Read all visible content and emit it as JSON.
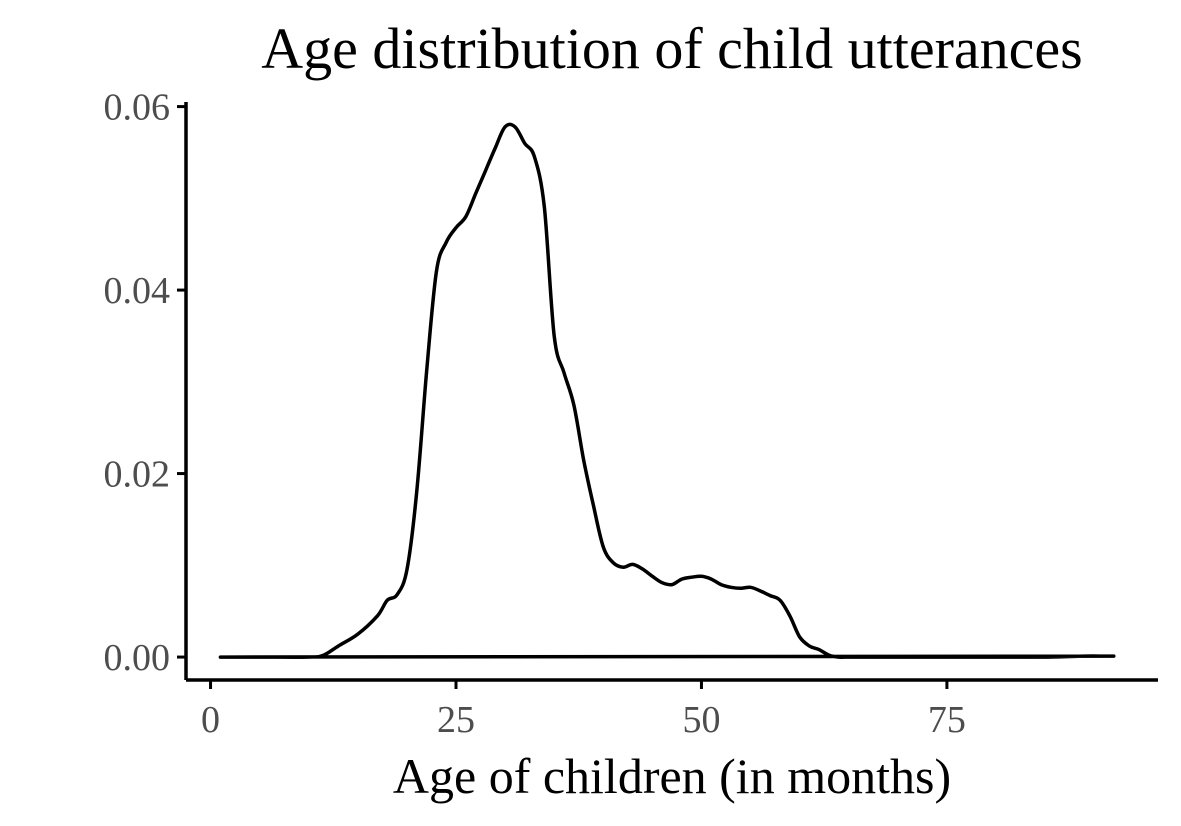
{
  "chart_data": {
    "type": "line",
    "title": "Age distribution of child utterances",
    "xlabel": "Age of children (in months)",
    "ylabel": "",
    "xlim": [
      -2.5,
      96.5
    ],
    "ylim": [
      -0.0025,
      0.0605
    ],
    "x_ticks": [
      0,
      25,
      50,
      75
    ],
    "x_tick_labels": [
      "0",
      "25",
      "50",
      "75"
    ],
    "y_ticks": [
      0,
      0.02,
      0.04,
      0.06
    ],
    "y_tick_labels": [
      "0.00",
      "0.02",
      "0.04",
      "0.06"
    ],
    "grid": false,
    "legend": "none",
    "line_color": "#000000",
    "series": [
      {
        "x": [
          1,
          5,
          10,
          11.5,
          13,
          15,
          17,
          18,
          19,
          20,
          21,
          22,
          23,
          24,
          25,
          26,
          27,
          28,
          29,
          30,
          31,
          32,
          33,
          34,
          35,
          36,
          37,
          38,
          39,
          40,
          41,
          42,
          43,
          44,
          45,
          46,
          47,
          48,
          49,
          50,
          51,
          52,
          53,
          54,
          55,
          56,
          57,
          58,
          59,
          60,
          61,
          62,
          63,
          64,
          65,
          67,
          70,
          75,
          80,
          85,
          89,
          91,
          92
        ],
        "y": [
          0,
          0,
          0,
          0.0002,
          0.0012,
          0.0025,
          0.0045,
          0.0062,
          0.0068,
          0.0095,
          0.018,
          0.031,
          0.042,
          0.0452,
          0.0468,
          0.048,
          0.0505,
          0.053,
          0.0555,
          0.0578,
          0.0578,
          0.056,
          0.0545,
          0.049,
          0.035,
          0.031,
          0.0275,
          0.0215,
          0.0165,
          0.012,
          0.0103,
          0.0098,
          0.0101,
          0.0096,
          0.0088,
          0.0081,
          0.0079,
          0.0085,
          0.0087,
          0.0088,
          0.0085,
          0.0079,
          0.0076,
          0.0075,
          0.0076,
          0.0072,
          0.0067,
          0.0062,
          0.0045,
          0.0022,
          0.0012,
          0.0008,
          0.0002,
          0.0,
          0,
          0,
          0,
          0,
          0,
          0,
          0.0001,
          0.0001,
          0.0001
        ]
      }
    ]
  }
}
